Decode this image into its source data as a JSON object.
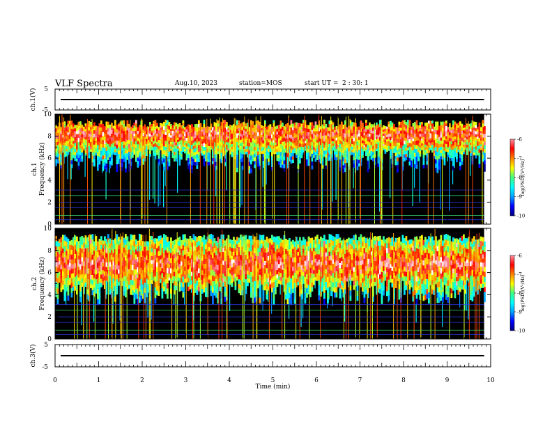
{
  "header": {
    "title": "VLF Spectra",
    "date": "Aug.10, 2023",
    "station": "station=MOS",
    "start_label": "start  UT =",
    "start_time": "2 : 30: 1"
  },
  "colors": {
    "spectrogram_background": "#000000",
    "colormap": [
      "#000080",
      "#0000ff",
      "#00a0ff",
      "#00ffff",
      "#40ff80",
      "#ffff00",
      "#ff8000",
      "#ff0000",
      "#ff90a0",
      "#ffffff"
    ]
  },
  "chart_data": [
    {
      "type": "line",
      "id": "ch1_waveform",
      "ylabel": "ch.1(V)",
      "yticks": [
        "5",
        "-5"
      ],
      "ylim": [
        -5,
        5
      ],
      "xlim": [
        0,
        10
      ],
      "series": [
        {
          "values": [
            {
              "x": 0,
              "y": 0
            },
            {
              "x": 10,
              "y": 0
            }
          ]
        }
      ]
    },
    {
      "type": "heatmap",
      "id": "ch1_spectrogram",
      "ylabel": "ch.1\nFrequency (kHz)",
      "ylabel_lines": [
        "ch.1",
        "Frequency (kHz)"
      ],
      "yticks": [
        "0",
        "2",
        "4",
        "6",
        "8",
        "10"
      ],
      "ylim": [
        0,
        10
      ],
      "xlim": [
        0,
        10
      ],
      "colorbar": {
        "label": "log(PSD)(V²/Hz)",
        "ticks": [
          "-6",
          "-7",
          "-8",
          "-9",
          "-10"
        ],
        "range": [
          -10,
          -6
        ]
      },
      "band_kHz": [
        5.5,
        9.5
      ],
      "peak_kHz": 8.2,
      "hum_lines_kHz": [
        0.4,
        0.8,
        1.5,
        2.0,
        2.6,
        3.1
      ]
    },
    {
      "type": "heatmap",
      "id": "ch2_spectrogram",
      "ylabel": "ch.2\nFrequency (kHz)",
      "ylabel_lines": [
        "ch.2",
        "Frequency (kHz)"
      ],
      "yticks": [
        "0",
        "2",
        "4",
        "6",
        "8",
        "10"
      ],
      "ylim": [
        0,
        10
      ],
      "xlim": [
        0,
        10
      ],
      "colorbar": {
        "label": "log(PSD)(V²/Hz)",
        "ticks": [
          "-6",
          "-7",
          "-8",
          "-9",
          "-10"
        ],
        "range": [
          -10,
          -6
        ]
      },
      "band_kHz": [
        4.0,
        9.5
      ],
      "peak_kHz": 6.8,
      "hum_lines_kHz": [
        0.4,
        0.8,
        1.5,
        2.0,
        2.6,
        3.1
      ]
    },
    {
      "type": "line",
      "id": "ch3_waveform",
      "ylabel": "ch.3(V)",
      "yticks": [
        "5",
        "-5"
      ],
      "ylim": [
        -5,
        5
      ],
      "xlim": [
        0,
        10
      ],
      "series": [
        {
          "values": [
            {
              "x": 0,
              "y": 0
            },
            {
              "x": 10,
              "y": 0
            }
          ]
        }
      ]
    }
  ],
  "xaxis": {
    "label": "Time  (min)",
    "ticks": [
      "0",
      "1",
      "2",
      "3",
      "4",
      "5",
      "6",
      "7",
      "8",
      "9",
      "10"
    ],
    "data_end_min": 9.85
  }
}
